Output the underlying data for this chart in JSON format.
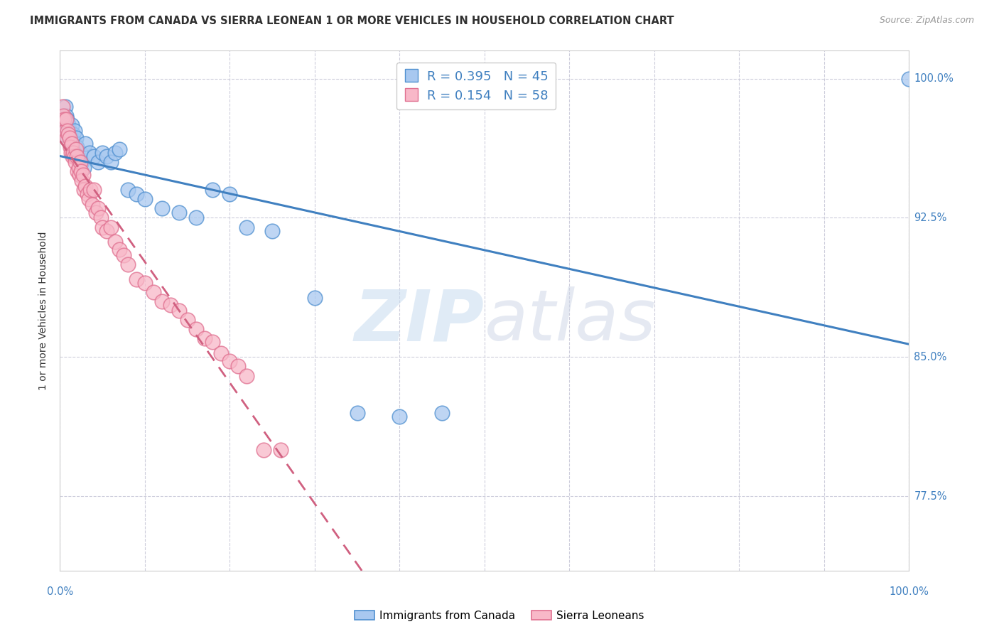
{
  "title": "IMMIGRANTS FROM CANADA VS SIERRA LEONEAN 1 OR MORE VEHICLES IN HOUSEHOLD CORRELATION CHART",
  "source": "Source: ZipAtlas.com",
  "ylabel": "1 or more Vehicles in Household",
  "xlim": [
    0.0,
    1.0
  ],
  "ylim": [
    0.735,
    1.015
  ],
  "y_ticks": [
    0.775,
    0.85,
    0.925,
    1.0
  ],
  "watermark_zip": "ZIP",
  "watermark_atlas": "atlas",
  "blue_R": "0.395",
  "blue_N": "45",
  "pink_R": "0.154",
  "pink_N": "58",
  "blue_fill": "#A8C8F0",
  "blue_edge": "#5090D0",
  "pink_fill": "#F8B8C8",
  "pink_edge": "#E07090",
  "blue_line": "#4080C0",
  "pink_line": "#D06080",
  "grid_color": "#C8C8D8",
  "title_color": "#303030",
  "tick_color": "#4080C0",
  "blue_scatter_x": [
    0.003,
    0.005,
    0.006,
    0.007,
    0.008,
    0.009,
    0.01,
    0.011,
    0.012,
    0.013,
    0.014,
    0.015,
    0.016,
    0.017,
    0.018,
    0.019,
    0.02,
    0.022,
    0.024,
    0.026,
    0.028,
    0.03,
    0.035,
    0.04,
    0.045,
    0.05,
    0.055,
    0.06,
    0.065,
    0.07,
    0.08,
    0.09,
    0.1,
    0.12,
    0.14,
    0.16,
    0.18,
    0.2,
    0.22,
    0.25,
    0.3,
    0.35,
    0.4,
    0.45,
    1.0
  ],
  "blue_scatter_y": [
    0.97,
    0.975,
    0.985,
    0.98,
    0.978,
    0.976,
    0.975,
    0.972,
    0.97,
    0.968,
    0.975,
    0.965,
    0.97,
    0.972,
    0.965,
    0.968,
    0.963,
    0.958,
    0.96,
    0.955,
    0.952,
    0.965,
    0.96,
    0.958,
    0.955,
    0.96,
    0.958,
    0.955,
    0.96,
    0.962,
    0.94,
    0.938,
    0.935,
    0.93,
    0.928,
    0.925,
    0.94,
    0.938,
    0.92,
    0.918,
    0.882,
    0.82,
    0.818,
    0.82,
    1.0
  ],
  "pink_scatter_x": [
    0.003,
    0.004,
    0.005,
    0.006,
    0.007,
    0.008,
    0.009,
    0.01,
    0.011,
    0.012,
    0.013,
    0.014,
    0.015,
    0.016,
    0.017,
    0.018,
    0.019,
    0.02,
    0.021,
    0.022,
    0.023,
    0.024,
    0.025,
    0.026,
    0.027,
    0.028,
    0.03,
    0.032,
    0.034,
    0.036,
    0.038,
    0.04,
    0.042,
    0.045,
    0.048,
    0.05,
    0.055,
    0.06,
    0.065,
    0.07,
    0.075,
    0.08,
    0.09,
    0.1,
    0.11,
    0.12,
    0.13,
    0.14,
    0.15,
    0.16,
    0.17,
    0.18,
    0.19,
    0.2,
    0.21,
    0.22,
    0.24,
    0.26
  ],
  "pink_scatter_y": [
    0.985,
    0.98,
    0.978,
    0.972,
    0.978,
    0.968,
    0.972,
    0.97,
    0.968,
    0.963,
    0.96,
    0.965,
    0.958,
    0.96,
    0.958,
    0.955,
    0.962,
    0.958,
    0.95,
    0.952,
    0.948,
    0.955,
    0.95,
    0.945,
    0.948,
    0.94,
    0.942,
    0.938,
    0.935,
    0.94,
    0.932,
    0.94,
    0.928,
    0.93,
    0.925,
    0.92,
    0.918,
    0.92,
    0.912,
    0.908,
    0.905,
    0.9,
    0.892,
    0.89,
    0.885,
    0.88,
    0.878,
    0.875,
    0.87,
    0.865,
    0.86,
    0.858,
    0.852,
    0.848,
    0.845,
    0.84,
    0.8,
    0.8
  ]
}
